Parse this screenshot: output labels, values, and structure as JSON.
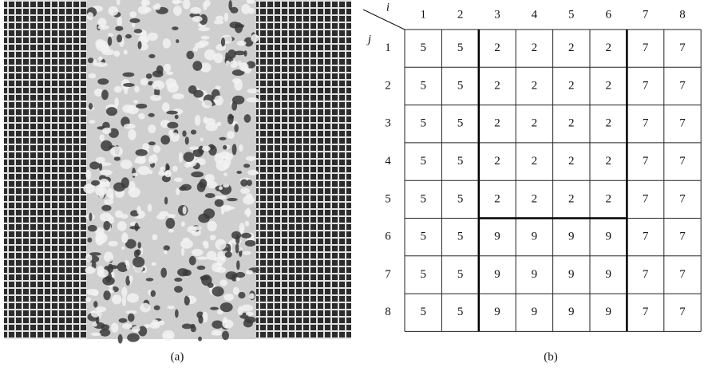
{
  "figure": {
    "caption_a": "(a)",
    "caption_b": "(b)",
    "table": {
      "col_label": "i",
      "row_label": "j",
      "columns": [
        1,
        2,
        3,
        4,
        5,
        6,
        7,
        8
      ],
      "rows": [
        {
          "label": 1,
          "values": [
            5,
            5,
            2,
            2,
            2,
            2,
            7,
            7
          ]
        },
        {
          "label": 2,
          "values": [
            5,
            5,
            2,
            2,
            2,
            2,
            7,
            7
          ]
        },
        {
          "label": 3,
          "values": [
            5,
            5,
            2,
            2,
            2,
            2,
            7,
            7
          ]
        },
        {
          "label": 4,
          "values": [
            5,
            5,
            2,
            2,
            2,
            2,
            7,
            7
          ]
        },
        {
          "label": 5,
          "values": [
            5,
            5,
            2,
            2,
            2,
            2,
            7,
            7
          ]
        },
        {
          "label": 6,
          "values": [
            5,
            5,
            9,
            9,
            9,
            9,
            7,
            7
          ]
        },
        {
          "label": 7,
          "values": [
            5,
            5,
            9,
            9,
            9,
            9,
            7,
            7
          ]
        },
        {
          "label": 8,
          "values": [
            5,
            5,
            9,
            9,
            9,
            9,
            7,
            7
          ]
        }
      ]
    }
  }
}
